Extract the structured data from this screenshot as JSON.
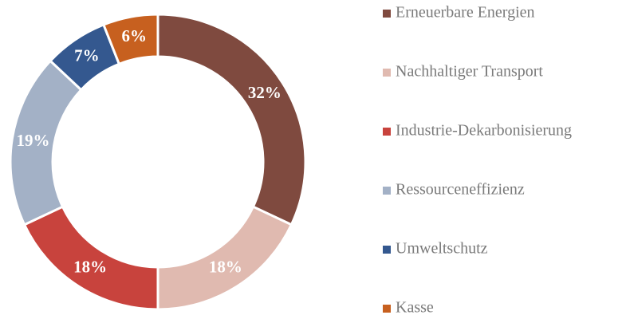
{
  "chart_data": {
    "type": "donut",
    "categories": [
      "Erneuerbare Energien",
      "Nachhaltiger Transport",
      "Industrie-Dekarbonisierung",
      "Ressourceneffizienz",
      "Umweltschutz",
      "Kasse"
    ],
    "values": [
      32,
      18,
      18,
      19,
      7,
      6
    ],
    "value_labels": [
      "32%",
      "18%",
      "18%",
      "19%",
      "7%",
      "6%"
    ],
    "colors": [
      "#7f4a3f",
      "#e0bab0",
      "#c8433d",
      "#a3b1c6",
      "#34588f",
      "#c7601f"
    ],
    "legend": "right"
  }
}
